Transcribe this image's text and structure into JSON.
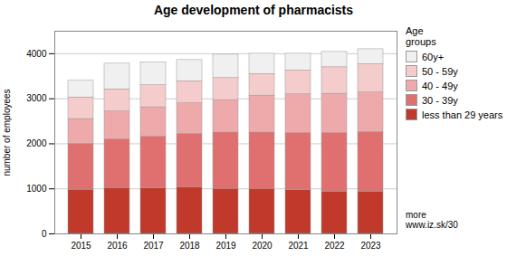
{
  "chart_data": {
    "type": "bar",
    "stacked": true,
    "title": "Age development of pharmacists",
    "ylabel": "number of employees",
    "categories": [
      "2015",
      "2016",
      "2017",
      "2018",
      "2019",
      "2020",
      "2021",
      "2022",
      "2023"
    ],
    "series": [
      {
        "name": "less than 29 years",
        "color": "#c0392b",
        "values": [
          980,
          1020,
          1010,
          1030,
          1000,
          1000,
          970,
          940,
          940
        ]
      },
      {
        "name": "30 - 39y",
        "color": "#e07070",
        "values": [
          1020,
          1080,
          1150,
          1190,
          1250,
          1250,
          1270,
          1300,
          1320
        ]
      },
      {
        "name": "40 - 49y",
        "color": "#eeaaaa",
        "values": [
          550,
          620,
          650,
          680,
          720,
          820,
          860,
          870,
          880
        ]
      },
      {
        "name": "50 - 59y",
        "color": "#f4cccc",
        "values": [
          480,
          490,
          490,
          490,
          490,
          480,
          530,
          590,
          630
        ]
      },
      {
        "name": "60y+",
        "color": "#f0f0f0",
        "values": [
          370,
          570,
          510,
          470,
          520,
          450,
          370,
          340,
          330
        ]
      }
    ],
    "ylim": [
      0,
      4500
    ],
    "yticks": [
      0,
      1000,
      2000,
      3000,
      4000
    ],
    "grid": true,
    "legend": "right",
    "legend_title": "Age\ngroups",
    "annotation": "more\nwww.iz.sk/30"
  }
}
